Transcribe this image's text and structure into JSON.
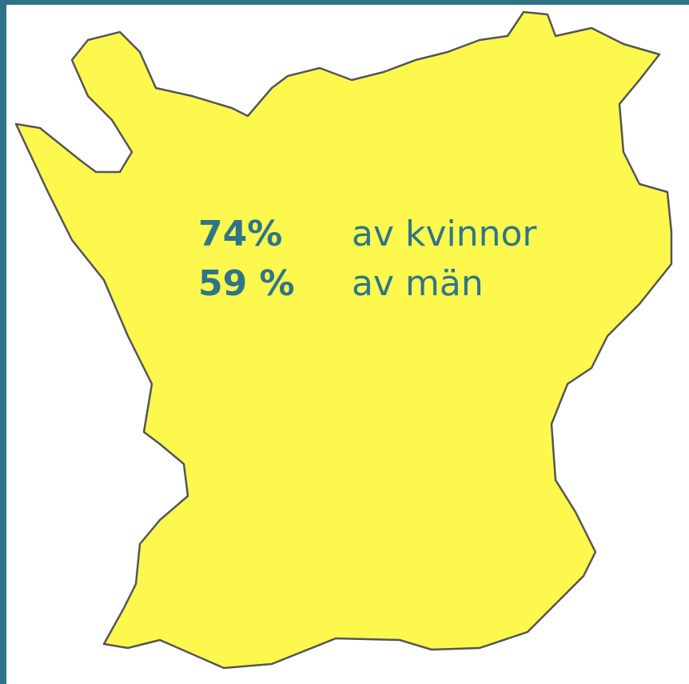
{
  "stats": [
    {
      "value": "74%",
      "label": "av kvinnor"
    },
    {
      "value": "59 %",
      "label": "av män"
    }
  ]
}
